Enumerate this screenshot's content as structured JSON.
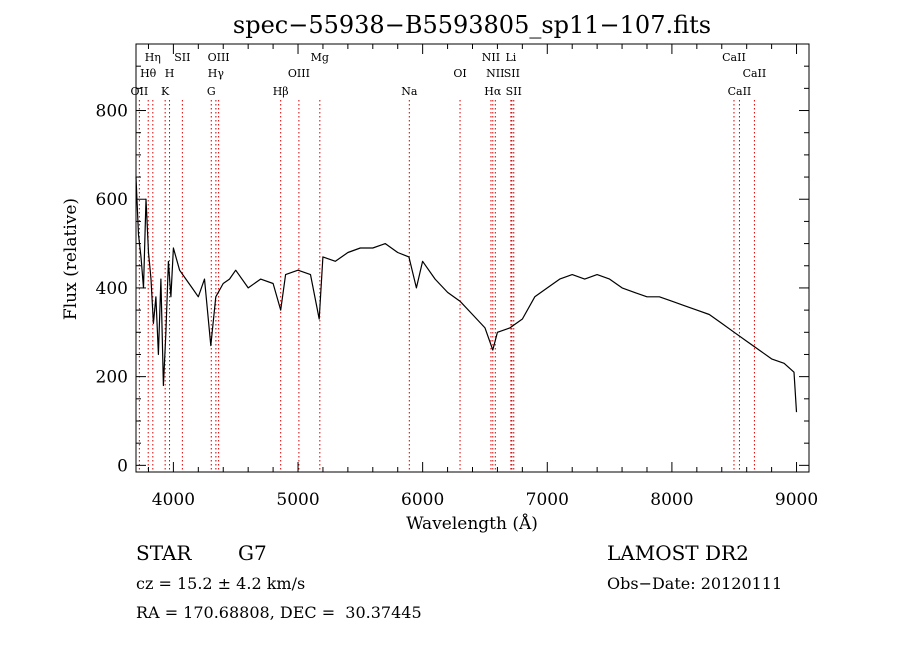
{
  "chart_data": {
    "type": "line",
    "title": "spec−55938−B5593805_sp11−107.fits",
    "xlabel": "Wavelength (Å)",
    "ylabel": "Flux (relative)",
    "xlim": [
      3700,
      9100
    ],
    "ylim": [
      -15,
      950
    ],
    "x_ticks": [
      {
        "value": 4000,
        "label": "4000"
      },
      {
        "value": 5000,
        "label": "5000"
      },
      {
        "value": 6000,
        "label": "6000"
      },
      {
        "value": 7000,
        "label": "7000"
      },
      {
        "value": 8000,
        "label": "8000"
      },
      {
        "value": 9000,
        "label": "9000"
      }
    ],
    "y_ticks": [
      {
        "value": 0,
        "label": "0"
      },
      {
        "value": 200,
        "label": "200"
      },
      {
        "value": 400,
        "label": "400"
      },
      {
        "value": 600,
        "label": "600"
      },
      {
        "value": 800,
        "label": "800"
      }
    ],
    "grid": false,
    "series": [
      {
        "color": "#000000",
        "x": [
          3700,
          3720,
          3740,
          3760,
          3780,
          3800,
          3820,
          3840,
          3860,
          3880,
          3900,
          3920,
          3940,
          3960,
          3980,
          4000,
          4050,
          4100,
          4150,
          4200,
          4250,
          4300,
          4340,
          4400,
          4450,
          4500,
          4600,
          4700,
          4800,
          4861,
          4900,
          5000,
          5100,
          5170,
          5200,
          5300,
          5400,
          5500,
          5600,
          5700,
          5800,
          5890,
          5950,
          6000,
          6100,
          6200,
          6300,
          6400,
          6500,
          6563,
          6600,
          6700,
          6800,
          6900,
          7000,
          7100,
          7200,
          7300,
          7400,
          7500,
          7600,
          7700,
          7800,
          7900,
          8000,
          8100,
          8200,
          8300,
          8400,
          8500,
          8600,
          8700,
          8800,
          8900,
          8980,
          9000
        ],
        "y": [
          650,
          520,
          470,
          400,
          600,
          480,
          420,
          320,
          380,
          250,
          420,
          180,
          300,
          460,
          380,
          490,
          440,
          420,
          400,
          380,
          420,
          270,
          380,
          410,
          420,
          440,
          400,
          420,
          410,
          350,
          430,
          440,
          430,
          330,
          470,
          460,
          480,
          490,
          490,
          500,
          480,
          470,
          400,
          460,
          420,
          390,
          370,
          340,
          310,
          260,
          300,
          310,
          330,
          380,
          400,
          420,
          430,
          420,
          430,
          420,
          400,
          390,
          380,
          380,
          370,
          360,
          350,
          340,
          320,
          300,
          280,
          260,
          240,
          230,
          210,
          120
        ]
      }
    ],
    "line_annotations": [
      {
        "x": 3727,
        "label": "OII",
        "row": 3
      },
      {
        "x": 3798,
        "label": "Hθ",
        "row": 2
      },
      {
        "x": 3835,
        "label": "Hη",
        "row": 1
      },
      {
        "x": 3934,
        "label": "K",
        "row": 3
      },
      {
        "x": 3969,
        "label": "H",
        "row": 2
      },
      {
        "x": 4072,
        "label": "SII",
        "row": 1
      },
      {
        "x": 4304,
        "label": "G",
        "row": 3
      },
      {
        "x": 4341,
        "label": "Hγ",
        "row": 2
      },
      {
        "x": 4363,
        "label": "OIII",
        "row": 1
      },
      {
        "x": 4861,
        "label": "Hβ",
        "row": 3
      },
      {
        "x": 5007,
        "label": "OIII",
        "row": 2
      },
      {
        "x": 5175,
        "label": "Mg",
        "row": 1
      },
      {
        "x": 5893,
        "label": "Na",
        "row": 3
      },
      {
        "x": 6300,
        "label": "OI",
        "row": 2
      },
      {
        "x": 6548,
        "label": "NII",
        "row": 1
      },
      {
        "x": 6563,
        "label": "Hα",
        "row": 3
      },
      {
        "x": 6583,
        "label": "NII",
        "row": 2
      },
      {
        "x": 6708,
        "label": "Li",
        "row": 1
      },
      {
        "x": 6716,
        "label": "SII",
        "row": 2
      },
      {
        "x": 6731,
        "label": "SII",
        "row": 3
      },
      {
        "x": 8498,
        "label": "CaII",
        "row": 1
      },
      {
        "x": 8542,
        "label": "CaII",
        "row": 3
      },
      {
        "x": 8662,
        "label": "CaII",
        "row": 2
      }
    ]
  },
  "info": {
    "object_class": "STAR",
    "subclass": "G7",
    "survey": "LAMOST DR2",
    "redshift": "cz = 15.2 ± 4.2 km/s",
    "obs_date": "Obs−Date: 20120111",
    "coords": "RA = 170.68808, DEC =  30.37445"
  }
}
